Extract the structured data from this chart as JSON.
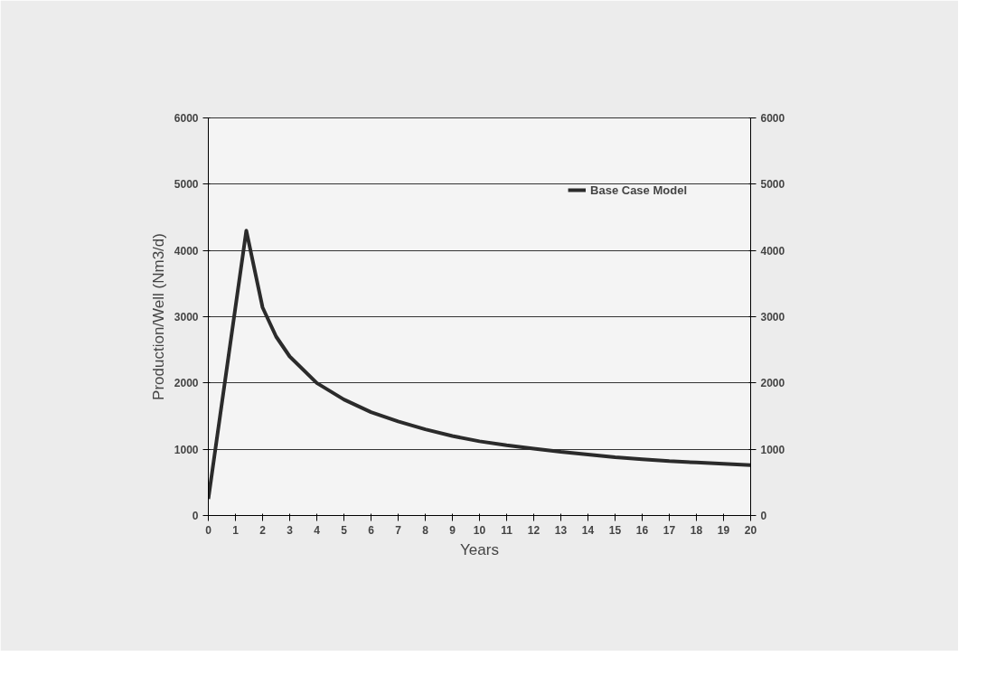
{
  "chart_data": {
    "type": "line",
    "xlabel": "Years",
    "ylabel": "Production/Well (Nm3/d)",
    "series": [
      {
        "name": "Base Case Model",
        "color": "#2b2b2b",
        "x": [
          0,
          1.4,
          2,
          2.5,
          3,
          4,
          5,
          6,
          7,
          8,
          9,
          10,
          11,
          12,
          13,
          14,
          15,
          16,
          17,
          18,
          19,
          20
        ],
        "values": [
          250,
          4300,
          3140,
          2700,
          2400,
          2000,
          1750,
          1560,
          1420,
          1300,
          1200,
          1120,
          1060,
          1010,
          960,
          920,
          880,
          850,
          820,
          800,
          780,
          760
        ]
      }
    ],
    "xlim": [
      0,
      20
    ],
    "xticks": [
      0,
      1,
      2,
      3,
      4,
      5,
      6,
      7,
      8,
      9,
      10,
      11,
      12,
      13,
      14,
      15,
      16,
      17,
      18,
      19,
      20
    ],
    "ylim": [
      0,
      6000
    ],
    "yticks": [
      0,
      1000,
      2000,
      3000,
      4000,
      5000,
      6000
    ],
    "y2lim": [
      0,
      6000
    ],
    "y2ticks": [
      0,
      1000,
      2000,
      3000,
      4000,
      5000,
      6000
    ],
    "grid": "y",
    "legend": "top right",
    "marker": "none",
    "line_style": "solid"
  }
}
